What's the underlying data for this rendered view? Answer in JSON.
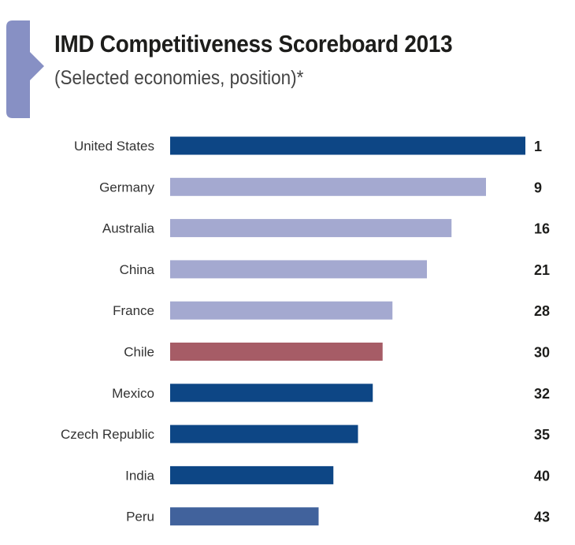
{
  "header": {
    "title": "IMD Competitiveness Scoreboard 2013",
    "subtitle": "(Selected economies, position)*"
  },
  "colors": {
    "accent_tab": "#8790c4",
    "highlight_bar": "#a65c66",
    "bar_dark": "#0d4685",
    "bar_light": "#a4a9d0",
    "bar_medium": "#41629c"
  },
  "chart_data": {
    "type": "bar",
    "orientation": "horizontal",
    "title": "IMD Competitiveness Scoreboard 2013",
    "subtitle": "(Selected economies, position)*",
    "categories": [
      "United States",
      "Germany",
      "Australia",
      "China",
      "France",
      "Chile",
      "Mexico",
      "Czech Republic",
      "India",
      "Peru"
    ],
    "values": [
      1,
      9,
      16,
      21,
      28,
      30,
      32,
      35,
      40,
      43
    ],
    "value_labels": [
      "1",
      "9",
      "16",
      "21",
      "28",
      "30",
      "32",
      "35",
      "40",
      "43"
    ],
    "bar_colors": [
      "#0d4685",
      "#a4a9d0",
      "#a4a9d0",
      "#a4a9d0",
      "#a4a9d0",
      "#a65c66",
      "#0d4685",
      "#0d4685",
      "#0d4685",
      "#41629c"
    ],
    "xlim": [
      0,
      60
    ],
    "note": "Bar length decreases as position number increases (rank 1 = longest bar)",
    "grid": false,
    "legend": "none"
  }
}
